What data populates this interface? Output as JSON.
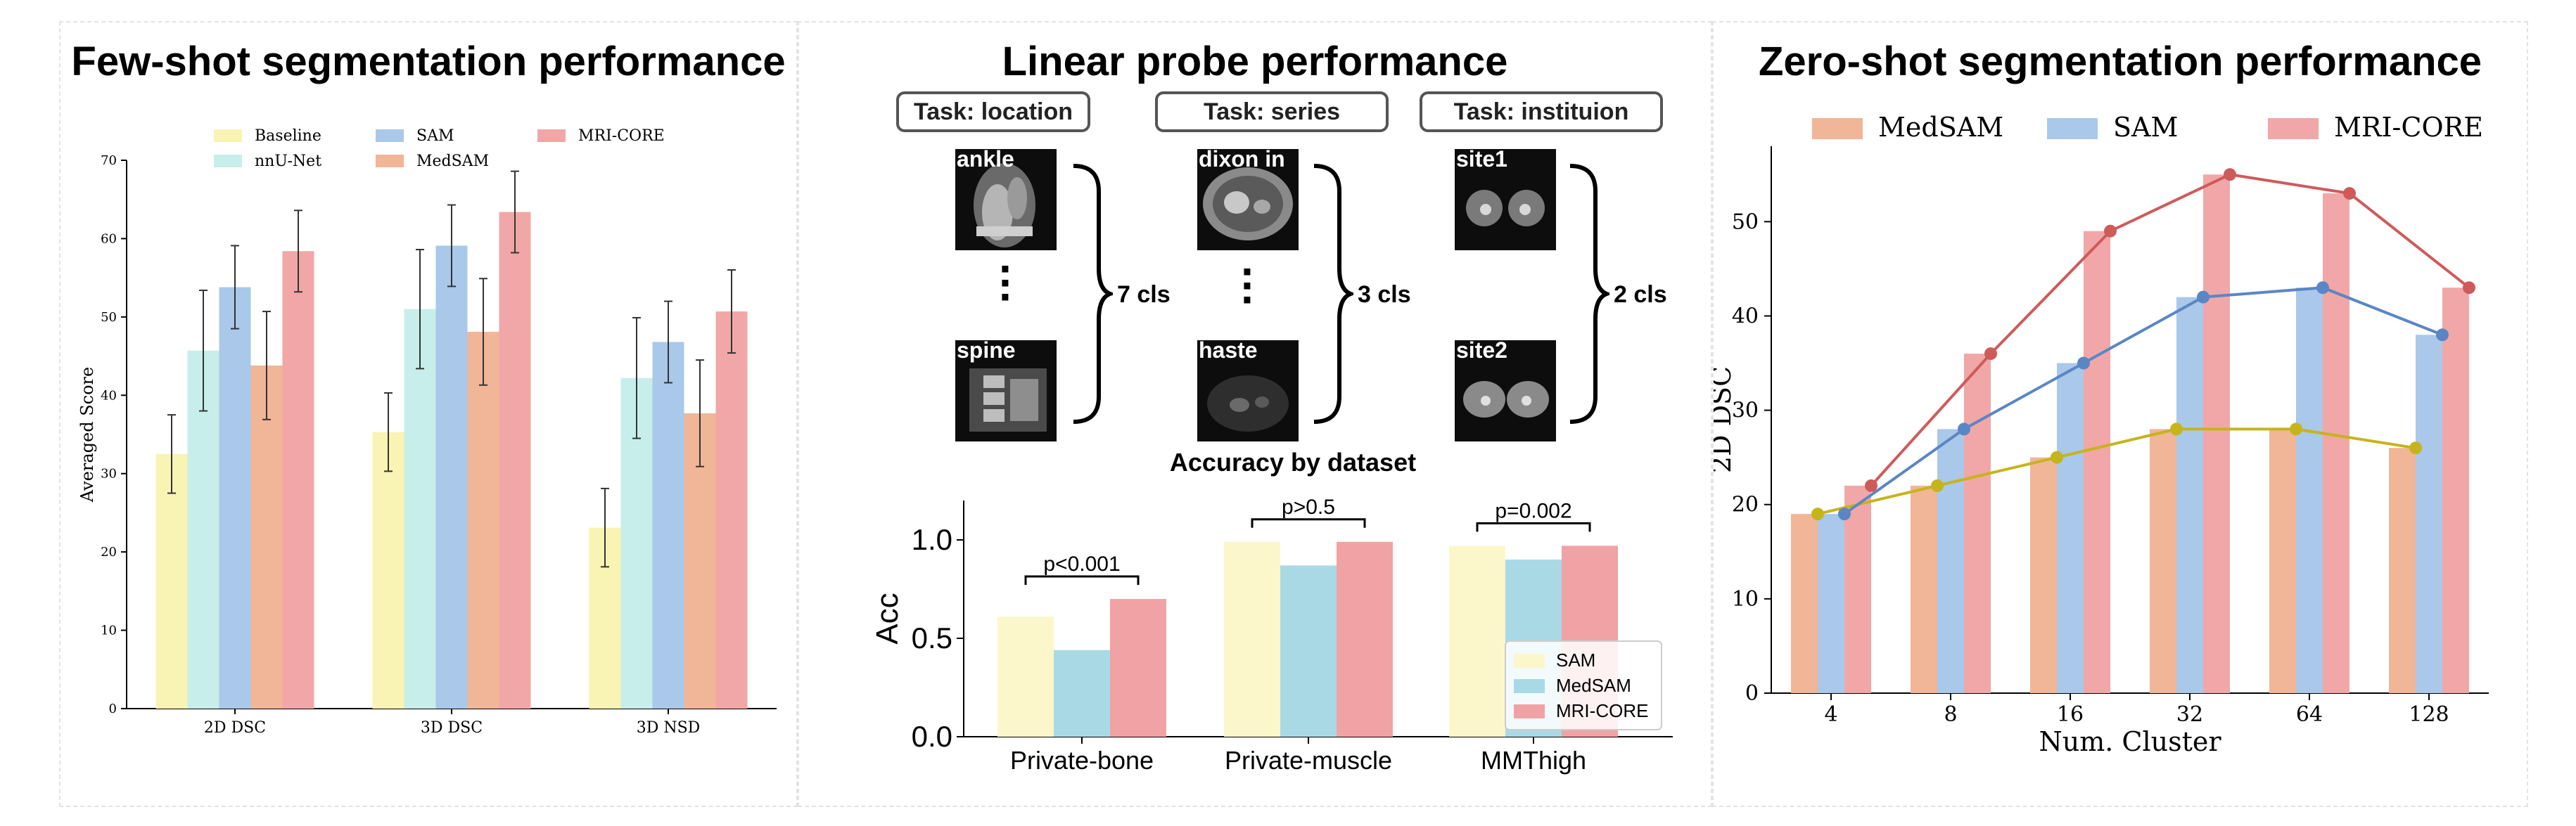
{
  "panels": {
    "left_title": "Few-shot segmentation performance",
    "middle_title": "Linear probe performance",
    "right_title": "Zero-shot segmentation performance"
  },
  "linear_probe": {
    "tasks": [
      {
        "label": "Task: location",
        "top_image": "ankle",
        "bottom_image": "spine",
        "classes": "7 cls"
      },
      {
        "label": "Task: series",
        "top_image": "dixon in",
        "bottom_image": "haste",
        "classes": "3 cls"
      },
      {
        "label": "Task: instituion",
        "top_image": "site1",
        "bottom_image": "site2",
        "classes": "2 cls"
      }
    ]
  },
  "colors": {
    "Baseline": "#f9f3b4",
    "nnU-Net": "#c7eeea",
    "SAM": "#a9c8ea",
    "MedSAM": "#f1b597",
    "MRI-CORE": "#f1a7a7",
    "probe_SAM": "#fcf6cb",
    "probe_MedSAM": "#aad9e6",
    "probe_MRI-CORE": "#f1a2a4",
    "line_MedSAM": "#c6b41c",
    "line_SAM": "#5a86c5",
    "line_MRI-CORE": "#cf5a5a"
  },
  "chart_data": [
    {
      "type": "bar",
      "ylabel": "Averaged Score",
      "categories": [
        "2D DSC",
        "3D DSC",
        "3D NSD"
      ],
      "ylim": [
        0,
        70
      ],
      "yticks": [
        "0",
        "10",
        "20",
        "30",
        "40",
        "50",
        "60",
        "70"
      ],
      "legend_position": "top",
      "grid": false,
      "series": [
        {
          "name": "Baseline",
          "values": [
            32.5,
            35.3,
            23.1
          ],
          "errors": [
            5.0,
            5.0,
            5.0
          ]
        },
        {
          "name": "nnU-Net",
          "values": [
            45.7,
            51.0,
            42.2
          ],
          "errors": [
            7.7,
            7.6,
            7.7
          ]
        },
        {
          "name": "SAM",
          "values": [
            53.8,
            59.1,
            46.8
          ],
          "errors": [
            5.3,
            5.2,
            5.2
          ]
        },
        {
          "name": "MedSAM",
          "values": [
            43.8,
            48.1,
            37.7
          ],
          "errors": [
            6.9,
            6.8,
            6.8
          ]
        },
        {
          "name": "MRI-CORE",
          "values": [
            58.4,
            63.4,
            50.7
          ],
          "errors": [
            5.2,
            5.2,
            5.3
          ]
        }
      ]
    },
    {
      "type": "bar",
      "title": "Accuracy by dataset",
      "ylabel": "Acc",
      "categories": [
        "Private-bone",
        "Private-muscle",
        "MMThigh"
      ],
      "ylim": [
        0,
        1.2
      ],
      "yticks": [
        "0.0",
        "0.5",
        "1.0"
      ],
      "legend_position": "lower right",
      "grid": false,
      "series": [
        {
          "name": "SAM",
          "values": [
            0.61,
            0.99,
            0.97
          ]
        },
        {
          "name": "MedSAM",
          "values": [
            0.44,
            0.87,
            0.9
          ]
        },
        {
          "name": "MRI-CORE",
          "values": [
            0.7,
            0.99,
            0.97
          ]
        }
      ],
      "annotations": [
        "p<0.001",
        "p>0.5",
        "p=0.002"
      ]
    },
    {
      "type": "bar",
      "xlabel": "Num. Cluster",
      "ylabel": "2D DSC",
      "categories": [
        "4",
        "8",
        "16",
        "32",
        "64",
        "128"
      ],
      "ylim": [
        0,
        58
      ],
      "yticks": [
        "0",
        "10",
        "20",
        "30",
        "40",
        "50"
      ],
      "legend_position": "top",
      "grid": false,
      "overlay": "line with markers for each series",
      "series": [
        {
          "name": "MedSAM",
          "values": [
            19,
            22,
            25,
            28,
            28,
            26
          ]
        },
        {
          "name": "SAM",
          "values": [
            19,
            28,
            35,
            42,
            43,
            38
          ]
        },
        {
          "name": "MRI-CORE",
          "values": [
            22,
            36,
            49,
            55,
            53,
            43
          ]
        }
      ]
    }
  ]
}
